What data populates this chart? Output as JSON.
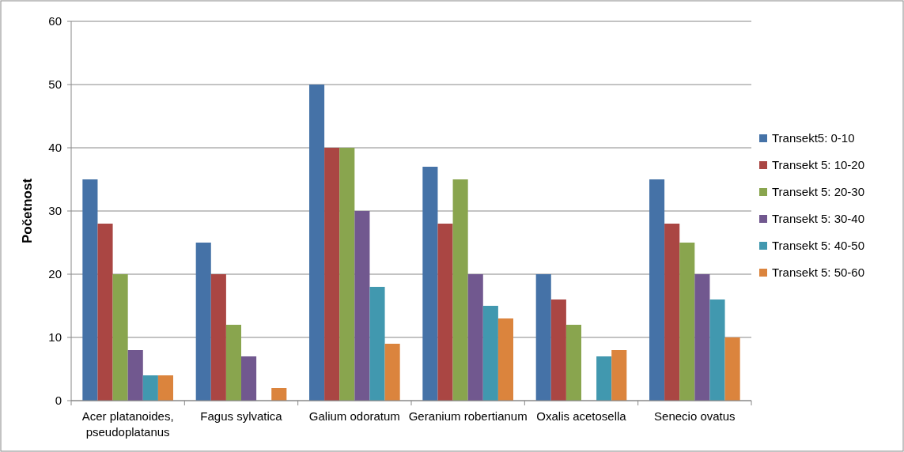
{
  "chart_data": {
    "type": "bar",
    "ylabel": "Početnost",
    "categories": [
      "Acer platanoides, pseudoplatanus",
      "Fagus sylvatica",
      "Galium odoratum",
      "Geranium robertianum",
      "Oxalis acetosella",
      "Senecio ovatus"
    ],
    "series": [
      {
        "name": "Transekt5: 0-10",
        "color": "#4572a7",
        "values": [
          35,
          25,
          50,
          37,
          20,
          35
        ]
      },
      {
        "name": "Transekt 5: 10-20",
        "color": "#aa4643",
        "values": [
          28,
          20,
          40,
          28,
          16,
          28
        ]
      },
      {
        "name": "Transekt 5: 20-30",
        "color": "#89a54e",
        "values": [
          20,
          12,
          40,
          35,
          12,
          25
        ]
      },
      {
        "name": "Transekt 5: 30-40",
        "color": "#71588f",
        "values": [
          8,
          7,
          30,
          20,
          null,
          20
        ]
      },
      {
        "name": "Transekt 5: 40-50",
        "color": "#4198af",
        "values": [
          4,
          null,
          18,
          15,
          7,
          16
        ]
      },
      {
        "name": "Transekt 5: 50-60",
        "color": "#db843d",
        "values": [
          4,
          2,
          9,
          13,
          8,
          10
        ]
      }
    ],
    "ylim": [
      0,
      60
    ],
    "yticks": [
      0,
      10,
      20,
      30,
      40,
      50,
      60
    ],
    "grid": "y",
    "legend": "right"
  }
}
